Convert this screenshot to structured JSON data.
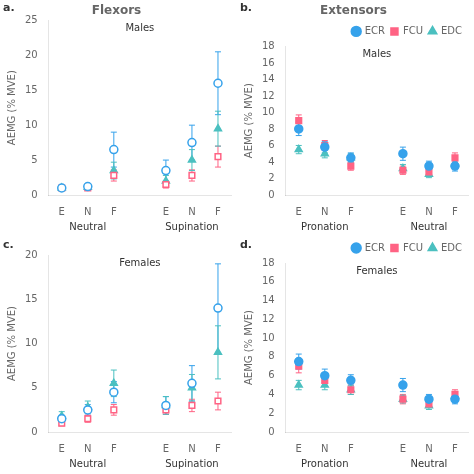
{
  "chart_data": [
    {
      "type": "scatter",
      "title": "Flexors",
      "ylabel": "AEMG (% MVE)",
      "categories": [
        "E",
        "N",
        "F",
        null,
        "E",
        "N",
        "F"
      ],
      "annotations": [
        "a.",
        "Males",
        "Neutral",
        "Supination"
      ],
      "ylim": [
        0,
        25
      ],
      "yticks": [
        0,
        5,
        10,
        15,
        20,
        25
      ],
      "grid": false,
      "series": [
        {
          "marker": "open_circle",
          "color": "#36a2eb",
          "values": [
            1.0,
            1.2,
            6.5,
            null,
            3.5,
            7.5,
            16.0
          ],
          "errors": [
            0.3,
            0.4,
            2.5,
            null,
            1.5,
            2.5,
            4.5
          ]
        },
        {
          "marker": "open_square",
          "color": "#ff6384",
          "values": [
            1.0,
            1.0,
            2.8,
            null,
            1.5,
            2.8,
            5.5
          ],
          "errors": [
            0.2,
            0.3,
            0.8,
            null,
            0.5,
            0.8,
            1.5
          ]
        },
        {
          "marker": "triangle",
          "color": "#4bc0c0",
          "values": [
            1.0,
            1.1,
            3.5,
            null,
            2.0,
            5.0,
            9.5
          ],
          "errors": [
            0.3,
            0.4,
            1.2,
            null,
            0.8,
            1.5,
            2.5
          ]
        }
      ]
    },
    {
      "type": "scatter",
      "title": "Extensors",
      "ylabel": "AEMG (% MVE)",
      "categories": [
        "E",
        "N",
        "F",
        null,
        "E",
        "N",
        "F"
      ],
      "annotations": [
        "b.",
        "Males",
        "Pronation",
        "Neutral"
      ],
      "ylim": [
        0,
        18
      ],
      "yticks": [
        0,
        2,
        4,
        6,
        8,
        10,
        12,
        14,
        16,
        18
      ],
      "grid": false,
      "legend": "upper right",
      "series": [
        {
          "name": "ECR",
          "marker": "circle",
          "color": "#36a2eb",
          "values": [
            8.0,
            5.8,
            4.5,
            null,
            5.0,
            3.5,
            3.5
          ],
          "errors": [
            0.8,
            0.7,
            0.6,
            null,
            0.8,
            0.6,
            0.6
          ]
        },
        {
          "name": "FCU",
          "marker": "square",
          "color": "#ff6384",
          "values": [
            9.0,
            6.0,
            3.5,
            null,
            3.0,
            2.8,
            4.5
          ],
          "errors": [
            0.7,
            0.6,
            0.5,
            null,
            0.5,
            0.4,
            0.6
          ]
        },
        {
          "name": "EDC",
          "marker": "triangle",
          "color": "#4bc0c0",
          "values": [
            5.5,
            5.0,
            4.5,
            null,
            3.2,
            2.5,
            3.8
          ],
          "errors": [
            0.5,
            0.5,
            0.5,
            null,
            0.5,
            0.4,
            0.5
          ]
        }
      ]
    },
    {
      "type": "scatter",
      "ylabel": "AEMG (% MVE)",
      "categories": [
        "E",
        "N",
        "F",
        null,
        "E",
        "N",
        "F"
      ],
      "annotations": [
        "c.",
        "Females",
        "Neutral",
        "Supination"
      ],
      "ylim": [
        0,
        20
      ],
      "yticks": [
        0,
        5,
        10,
        15,
        20
      ],
      "grid": false,
      "series": [
        {
          "marker": "open_circle",
          "color": "#36a2eb",
          "values": [
            1.5,
            2.5,
            4.5,
            null,
            3.0,
            5.5,
            14.0
          ],
          "errors": [
            0.4,
            0.6,
            1.2,
            null,
            1.0,
            2.0,
            5.0
          ]
        },
        {
          "marker": "open_square",
          "color": "#ff6384",
          "values": [
            1.0,
            1.5,
            2.5,
            null,
            2.5,
            3.0,
            3.5
          ],
          "errors": [
            0.3,
            0.4,
            0.6,
            null,
            0.5,
            0.7,
            1.0
          ]
        },
        {
          "marker": "triangle",
          "color": "#4bc0c0",
          "values": [
            1.8,
            2.8,
            5.5,
            null,
            3.0,
            5.0,
            9.0
          ],
          "errors": [
            0.5,
            0.7,
            1.5,
            null,
            1.0,
            1.5,
            3.0
          ]
        }
      ]
    },
    {
      "type": "scatter",
      "ylabel": "AEMG (% MVE)",
      "categories": [
        "E",
        "N",
        "F",
        null,
        "E",
        "N",
        "F"
      ],
      "annotations": [
        "d.",
        "Females",
        "Pronation",
        "Neutral"
      ],
      "ylim": [
        0,
        18
      ],
      "yticks": [
        0,
        2,
        4,
        6,
        8,
        10,
        12,
        14,
        16,
        18
      ],
      "grid": false,
      "legend": "upper right",
      "series": [
        {
          "name": "ECR",
          "marker": "circle",
          "color": "#36a2eb",
          "values": [
            7.5,
            6.0,
            5.5,
            null,
            5.0,
            3.5,
            3.5
          ],
          "errors": [
            0.8,
            0.7,
            0.6,
            null,
            0.7,
            0.5,
            0.5
          ]
        },
        {
          "name": "FCU",
          "marker": "square",
          "color": "#ff6384",
          "values": [
            7.0,
            5.5,
            4.5,
            null,
            3.5,
            3.0,
            4.0
          ],
          "errors": [
            0.7,
            0.6,
            0.5,
            null,
            0.5,
            0.4,
            0.5
          ]
        },
        {
          "name": "EDC",
          "marker": "triangle",
          "color": "#4bc0c0",
          "values": [
            5.0,
            5.0,
            4.5,
            null,
            3.5,
            2.8,
            3.8
          ],
          "errors": [
            0.5,
            0.5,
            0.5,
            null,
            0.4,
            0.4,
            0.5
          ]
        }
      ]
    }
  ]
}
